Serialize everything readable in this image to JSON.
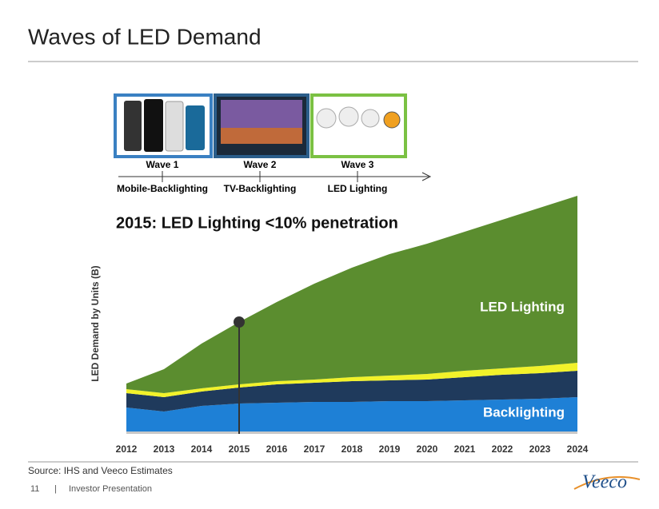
{
  "title": "Waves of LED Demand",
  "waves": [
    {
      "label": "Wave 1",
      "sublabel": "Mobile-Backlighting"
    },
    {
      "label": "Wave 2",
      "sublabel": "TV-Backlighting"
    },
    {
      "label": "Wave 3",
      "sublabel": "LED Lighting"
    }
  ],
  "source": "Source: IHS and Veeco Estimates",
  "footer": {
    "page": "11",
    "separator": "|",
    "text": "Investor Presentation"
  },
  "logo": "Veeco",
  "chart_data": {
    "type": "stacked-area",
    "annotation": "2015: LED Lighting <10% penetration",
    "y_label": "LED Demand by Units (B)",
    "categories": [
      "2012",
      "2013",
      "2014",
      "2015",
      "2016",
      "2017",
      "2018",
      "2019",
      "2020",
      "2021",
      "2022",
      "2023",
      "2024"
    ],
    "ylim": [
      0,
      300
    ],
    "series": [
      {
        "name": "Backlighting",
        "color": "#1e80d6",
        "values": [
          30,
          25,
          32,
          35,
          36,
          37,
          37,
          38,
          38,
          39,
          40,
          41,
          43
        ]
      },
      {
        "color": "#1f3a5c",
        "values": [
          18,
          18,
          18,
          20,
          23,
          24,
          26,
          26,
          27,
          29,
          31,
          32,
          33
        ]
      },
      {
        "color": "#f2f22a",
        "values": [
          5,
          5,
          4,
          4,
          4,
          4,
          5,
          6,
          7,
          8,
          8,
          9,
          10
        ]
      },
      {
        "name": "LED Lighting",
        "color": "#5b8d2f",
        "values": [
          7,
          30,
          56,
          78,
          99,
          120,
          137,
          152,
          163,
          174,
          186,
          198,
          209
        ]
      }
    ]
  }
}
